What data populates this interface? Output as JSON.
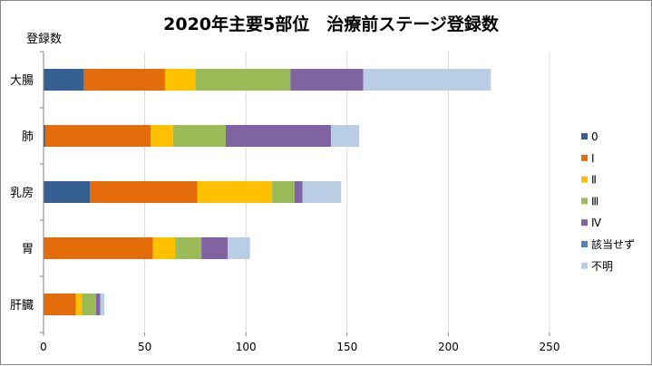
{
  "chart_data": {
    "type": "bar",
    "orientation": "horizontal",
    "stacked": true,
    "title": "2020年主要5部位　治療前ステージ登録数",
    "ylabel": "登録数",
    "categories": [
      "大腸",
      "肺",
      "乳房",
      "胃",
      "肝臓"
    ],
    "xlim": [
      0,
      250
    ],
    "xticks": [
      0,
      50,
      100,
      150,
      200,
      250
    ],
    "grid": true,
    "legend_position": "right",
    "series": [
      {
        "name": "0",
        "color": "#366092",
        "values": [
          20,
          1,
          23,
          0,
          0
        ]
      },
      {
        "name": "Ⅰ",
        "color": "#E46C0A",
        "values": [
          40,
          52,
          53,
          54,
          16
        ]
      },
      {
        "name": "Ⅱ",
        "color": "#FFC000",
        "values": [
          15,
          11,
          37,
          11,
          3
        ]
      },
      {
        "name": "Ⅲ",
        "color": "#9BBB59",
        "values": [
          47,
          26,
          11,
          13,
          7
        ]
      },
      {
        "name": "Ⅳ",
        "color": "#8064A2",
        "values": [
          36,
          52,
          4,
          13,
          2
        ]
      },
      {
        "name": "該当せず",
        "color": "#4F81BD",
        "values": [
          0,
          0,
          0,
          0,
          0
        ]
      },
      {
        "name": "不明",
        "color": "#B9CDE5",
        "values": [
          63,
          14,
          19,
          11,
          2
        ]
      }
    ]
  }
}
